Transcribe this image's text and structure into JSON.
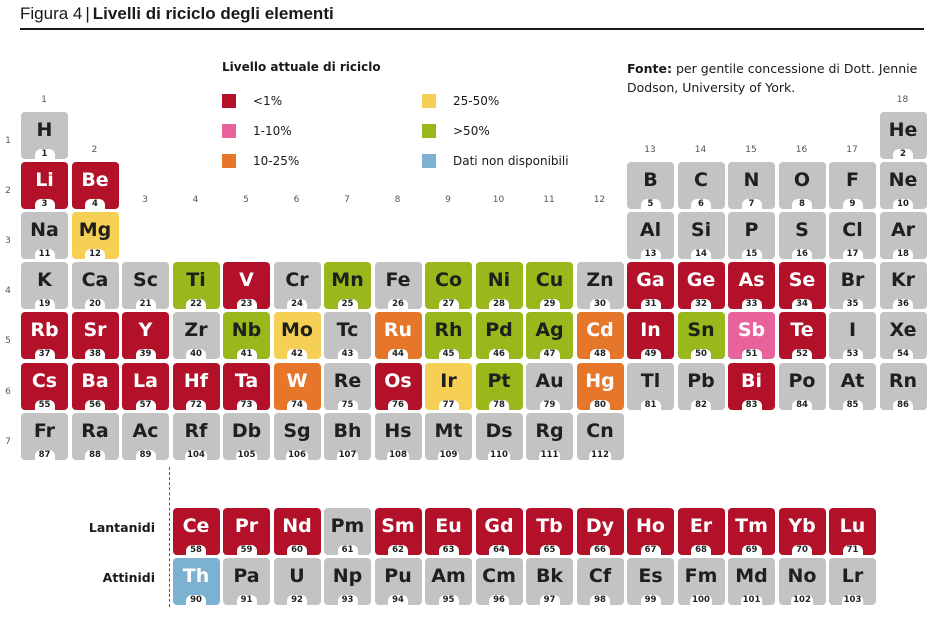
{
  "header": {
    "figure": "Figura 4",
    "separator": "|",
    "title": "Livelli di riciclo degli elementi"
  },
  "legend": {
    "heading": "Livello attuale di riciclo",
    "items": [
      {
        "key": "r",
        "label": "<1%",
        "color": "#b3112a"
      },
      {
        "key": "p",
        "label": "1-10%",
        "color": "#e8639b"
      },
      {
        "key": "o",
        "label": "10-25%",
        "color": "#e5762a"
      },
      {
        "key": "y",
        "label": "25-50%",
        "color": "#f6cf55"
      },
      {
        "key": "g",
        "label": ">50%",
        "color": "#98b81c"
      },
      {
        "key": "b",
        "label": "Dati non disponibili",
        "color": "#7db1d2"
      }
    ],
    "unknown_color": "#c3c3c3"
  },
  "source": {
    "label": "Fonte:",
    "text": "per gentile concessione di Dott. Jennie Dodson, University of York."
  },
  "groups": [
    "1",
    "2",
    "3",
    "4",
    "5",
    "6",
    "7",
    "8",
    "9",
    "10",
    "11",
    "12",
    "13",
    "14",
    "15",
    "16",
    "17",
    "18"
  ],
  "periods": [
    "1",
    "2",
    "3",
    "4",
    "5",
    "6",
    "7"
  ],
  "series_labels": {
    "lanthanides": "Lantanidi",
    "actinides": "Attinidi"
  },
  "elements": [
    {
      "s": "H",
      "n": 1,
      "p": 1,
      "g": 1,
      "c": "n"
    },
    {
      "s": "He",
      "n": 2,
      "p": 1,
      "g": 18,
      "c": "n"
    },
    {
      "s": "Li",
      "n": 3,
      "p": 2,
      "g": 1,
      "c": "r"
    },
    {
      "s": "Be",
      "n": 4,
      "p": 2,
      "g": 2,
      "c": "r"
    },
    {
      "s": "B",
      "n": 5,
      "p": 2,
      "g": 13,
      "c": "n"
    },
    {
      "s": "C",
      "n": 6,
      "p": 2,
      "g": 14,
      "c": "n"
    },
    {
      "s": "N",
      "n": 7,
      "p": 2,
      "g": 15,
      "c": "n"
    },
    {
      "s": "O",
      "n": 8,
      "p": 2,
      "g": 16,
      "c": "n"
    },
    {
      "s": "F",
      "n": 9,
      "p": 2,
      "g": 17,
      "c": "n"
    },
    {
      "s": "Ne",
      "n": 10,
      "p": 2,
      "g": 18,
      "c": "n"
    },
    {
      "s": "Na",
      "n": 11,
      "p": 3,
      "g": 1,
      "c": "n"
    },
    {
      "s": "Mg",
      "n": 12,
      "p": 3,
      "g": 2,
      "c": "y"
    },
    {
      "s": "Al",
      "n": 13,
      "p": 3,
      "g": 13,
      "c": "n"
    },
    {
      "s": "Si",
      "n": 14,
      "p": 3,
      "g": 14,
      "c": "n"
    },
    {
      "s": "P",
      "n": 15,
      "p": 3,
      "g": 15,
      "c": "n"
    },
    {
      "s": "S",
      "n": 16,
      "p": 3,
      "g": 16,
      "c": "n"
    },
    {
      "s": "Cl",
      "n": 17,
      "p": 3,
      "g": 17,
      "c": "n"
    },
    {
      "s": "Ar",
      "n": 18,
      "p": 3,
      "g": 18,
      "c": "n"
    },
    {
      "s": "K",
      "n": 19,
      "p": 4,
      "g": 1,
      "c": "n"
    },
    {
      "s": "Ca",
      "n": 20,
      "p": 4,
      "g": 2,
      "c": "n"
    },
    {
      "s": "Sc",
      "n": 21,
      "p": 4,
      "g": 3,
      "c": "n"
    },
    {
      "s": "Ti",
      "n": 22,
      "p": 4,
      "g": 4,
      "c": "g"
    },
    {
      "s": "V",
      "n": 23,
      "p": 4,
      "g": 5,
      "c": "r"
    },
    {
      "s": "Cr",
      "n": 24,
      "p": 4,
      "g": 6,
      "c": "n"
    },
    {
      "s": "Mn",
      "n": 25,
      "p": 4,
      "g": 7,
      "c": "g"
    },
    {
      "s": "Fe",
      "n": 26,
      "p": 4,
      "g": 8,
      "c": "n"
    },
    {
      "s": "Co",
      "n": 27,
      "p": 4,
      "g": 9,
      "c": "g"
    },
    {
      "s": "Ni",
      "n": 28,
      "p": 4,
      "g": 10,
      "c": "g"
    },
    {
      "s": "Cu",
      "n": 29,
      "p": 4,
      "g": 11,
      "c": "g"
    },
    {
      "s": "Zn",
      "n": 30,
      "p": 4,
      "g": 12,
      "c": "n"
    },
    {
      "s": "Ga",
      "n": 31,
      "p": 4,
      "g": 13,
      "c": "r"
    },
    {
      "s": "Ge",
      "n": 32,
      "p": 4,
      "g": 14,
      "c": "r"
    },
    {
      "s": "As",
      "n": 33,
      "p": 4,
      "g": 15,
      "c": "r"
    },
    {
      "s": "Se",
      "n": 34,
      "p": 4,
      "g": 16,
      "c": "r"
    },
    {
      "s": "Br",
      "n": 35,
      "p": 4,
      "g": 17,
      "c": "n"
    },
    {
      "s": "Kr",
      "n": 36,
      "p": 4,
      "g": 18,
      "c": "n"
    },
    {
      "s": "Rb",
      "n": 37,
      "p": 5,
      "g": 1,
      "c": "r"
    },
    {
      "s": "Sr",
      "n": 38,
      "p": 5,
      "g": 2,
      "c": "r"
    },
    {
      "s": "Y",
      "n": 39,
      "p": 5,
      "g": 3,
      "c": "r"
    },
    {
      "s": "Zr",
      "n": 40,
      "p": 5,
      "g": 4,
      "c": "n"
    },
    {
      "s": "Nb",
      "n": 41,
      "p": 5,
      "g": 5,
      "c": "g"
    },
    {
      "s": "Mo",
      "n": 42,
      "p": 5,
      "g": 6,
      "c": "y"
    },
    {
      "s": "Tc",
      "n": 43,
      "p": 5,
      "g": 7,
      "c": "n"
    },
    {
      "s": "Ru",
      "n": 44,
      "p": 5,
      "g": 8,
      "c": "o"
    },
    {
      "s": "Rh",
      "n": 45,
      "p": 5,
      "g": 9,
      "c": "g"
    },
    {
      "s": "Pd",
      "n": 46,
      "p": 5,
      "g": 10,
      "c": "g"
    },
    {
      "s": "Ag",
      "n": 47,
      "p": 5,
      "g": 11,
      "c": "g"
    },
    {
      "s": "Cd",
      "n": 48,
      "p": 5,
      "g": 12,
      "c": "o"
    },
    {
      "s": "In",
      "n": 49,
      "p": 5,
      "g": 13,
      "c": "r"
    },
    {
      "s": "Sn",
      "n": 50,
      "p": 5,
      "g": 14,
      "c": "g"
    },
    {
      "s": "Sb",
      "n": 51,
      "p": 5,
      "g": 15,
      "c": "p"
    },
    {
      "s": "Te",
      "n": 52,
      "p": 5,
      "g": 16,
      "c": "r"
    },
    {
      "s": "I",
      "n": 53,
      "p": 5,
      "g": 17,
      "c": "n"
    },
    {
      "s": "Xe",
      "n": 54,
      "p": 5,
      "g": 18,
      "c": "n"
    },
    {
      "s": "Cs",
      "n": 55,
      "p": 6,
      "g": 1,
      "c": "r"
    },
    {
      "s": "Ba",
      "n": 56,
      "p": 6,
      "g": 2,
      "c": "r"
    },
    {
      "s": "La",
      "n": 57,
      "p": 6,
      "g": 3,
      "c": "r"
    },
    {
      "s": "Hf",
      "n": 72,
      "p": 6,
      "g": 4,
      "c": "r"
    },
    {
      "s": "Ta",
      "n": 73,
      "p": 6,
      "g": 5,
      "c": "r"
    },
    {
      "s": "W",
      "n": 74,
      "p": 6,
      "g": 6,
      "c": "o"
    },
    {
      "s": "Re",
      "n": 75,
      "p": 6,
      "g": 7,
      "c": "n"
    },
    {
      "s": "Os",
      "n": 76,
      "p": 6,
      "g": 8,
      "c": "r"
    },
    {
      "s": "Ir",
      "n": 77,
      "p": 6,
      "g": 9,
      "c": "y"
    },
    {
      "s": "Pt",
      "n": 78,
      "p": 6,
      "g": 10,
      "c": "g"
    },
    {
      "s": "Au",
      "n": 79,
      "p": 6,
      "g": 11,
      "c": "n"
    },
    {
      "s": "Hg",
      "n": 80,
      "p": 6,
      "g": 12,
      "c": "o"
    },
    {
      "s": "Tl",
      "n": 81,
      "p": 6,
      "g": 13,
      "c": "n"
    },
    {
      "s": "Pb",
      "n": 82,
      "p": 6,
      "g": 14,
      "c": "n"
    },
    {
      "s": "Bi",
      "n": 83,
      "p": 6,
      "g": 15,
      "c": "r"
    },
    {
      "s": "Po",
      "n": 84,
      "p": 6,
      "g": 16,
      "c": "n"
    },
    {
      "s": "At",
      "n": 85,
      "p": 6,
      "g": 17,
      "c": "n"
    },
    {
      "s": "Rn",
      "n": 86,
      "p": 6,
      "g": 18,
      "c": "n"
    },
    {
      "s": "Fr",
      "n": 87,
      "p": 7,
      "g": 1,
      "c": "n"
    },
    {
      "s": "Ra",
      "n": 88,
      "p": 7,
      "g": 2,
      "c": "n"
    },
    {
      "s": "Ac",
      "n": 89,
      "p": 7,
      "g": 3,
      "c": "n"
    },
    {
      "s": "Rf",
      "n": 104,
      "p": 7,
      "g": 4,
      "c": "n"
    },
    {
      "s": "Db",
      "n": 105,
      "p": 7,
      "g": 5,
      "c": "n"
    },
    {
      "s": "Sg",
      "n": 106,
      "p": 7,
      "g": 6,
      "c": "n"
    },
    {
      "s": "Bh",
      "n": 107,
      "p": 7,
      "g": 7,
      "c": "n"
    },
    {
      "s": "Hs",
      "n": 108,
      "p": 7,
      "g": 8,
      "c": "n"
    },
    {
      "s": "Mt",
      "n": 109,
      "p": 7,
      "g": 9,
      "c": "n"
    },
    {
      "s": "Ds",
      "n": 110,
      "p": 7,
      "g": 10,
      "c": "n"
    },
    {
      "s": "Rg",
      "n": 111,
      "p": 7,
      "g": 11,
      "c": "n"
    },
    {
      "s": "Cn",
      "n": 112,
      "p": 7,
      "g": 12,
      "c": "n"
    }
  ],
  "lanthanides": [
    {
      "s": "Ce",
      "n": 58,
      "c": "r"
    },
    {
      "s": "Pr",
      "n": 59,
      "c": "r"
    },
    {
      "s": "Nd",
      "n": 60,
      "c": "r"
    },
    {
      "s": "Pm",
      "n": 61,
      "c": "n"
    },
    {
      "s": "Sm",
      "n": 62,
      "c": "r"
    },
    {
      "s": "Eu",
      "n": 63,
      "c": "r"
    },
    {
      "s": "Gd",
      "n": 64,
      "c": "r"
    },
    {
      "s": "Tb",
      "n": 65,
      "c": "r"
    },
    {
      "s": "Dy",
      "n": 66,
      "c": "r"
    },
    {
      "s": "Ho",
      "n": 67,
      "c": "r"
    },
    {
      "s": "Er",
      "n": 68,
      "c": "r"
    },
    {
      "s": "Tm",
      "n": 69,
      "c": "r"
    },
    {
      "s": "Yb",
      "n": 70,
      "c": "r"
    },
    {
      "s": "Lu",
      "n": 71,
      "c": "r"
    }
  ],
  "actinides": [
    {
      "s": "Th",
      "n": 90,
      "c": "b"
    },
    {
      "s": "Pa",
      "n": 91,
      "c": "n"
    },
    {
      "s": "U",
      "n": 92,
      "c": "n"
    },
    {
      "s": "Np",
      "n": 93,
      "c": "n"
    },
    {
      "s": "Pu",
      "n": 94,
      "c": "n"
    },
    {
      "s": "Am",
      "n": 95,
      "c": "n"
    },
    {
      "s": "Cm",
      "n": 96,
      "c": "n"
    },
    {
      "s": "Bk",
      "n": 97,
      "c": "n"
    },
    {
      "s": "Cf",
      "n": 98,
      "c": "n"
    },
    {
      "s": "Es",
      "n": 99,
      "c": "n"
    },
    {
      "s": "Fm",
      "n": 100,
      "c": "n"
    },
    {
      "s": "Md",
      "n": 101,
      "c": "n"
    },
    {
      "s": "No",
      "n": 102,
      "c": "n"
    },
    {
      "s": "Lr",
      "n": 103,
      "c": "n"
    }
  ]
}
